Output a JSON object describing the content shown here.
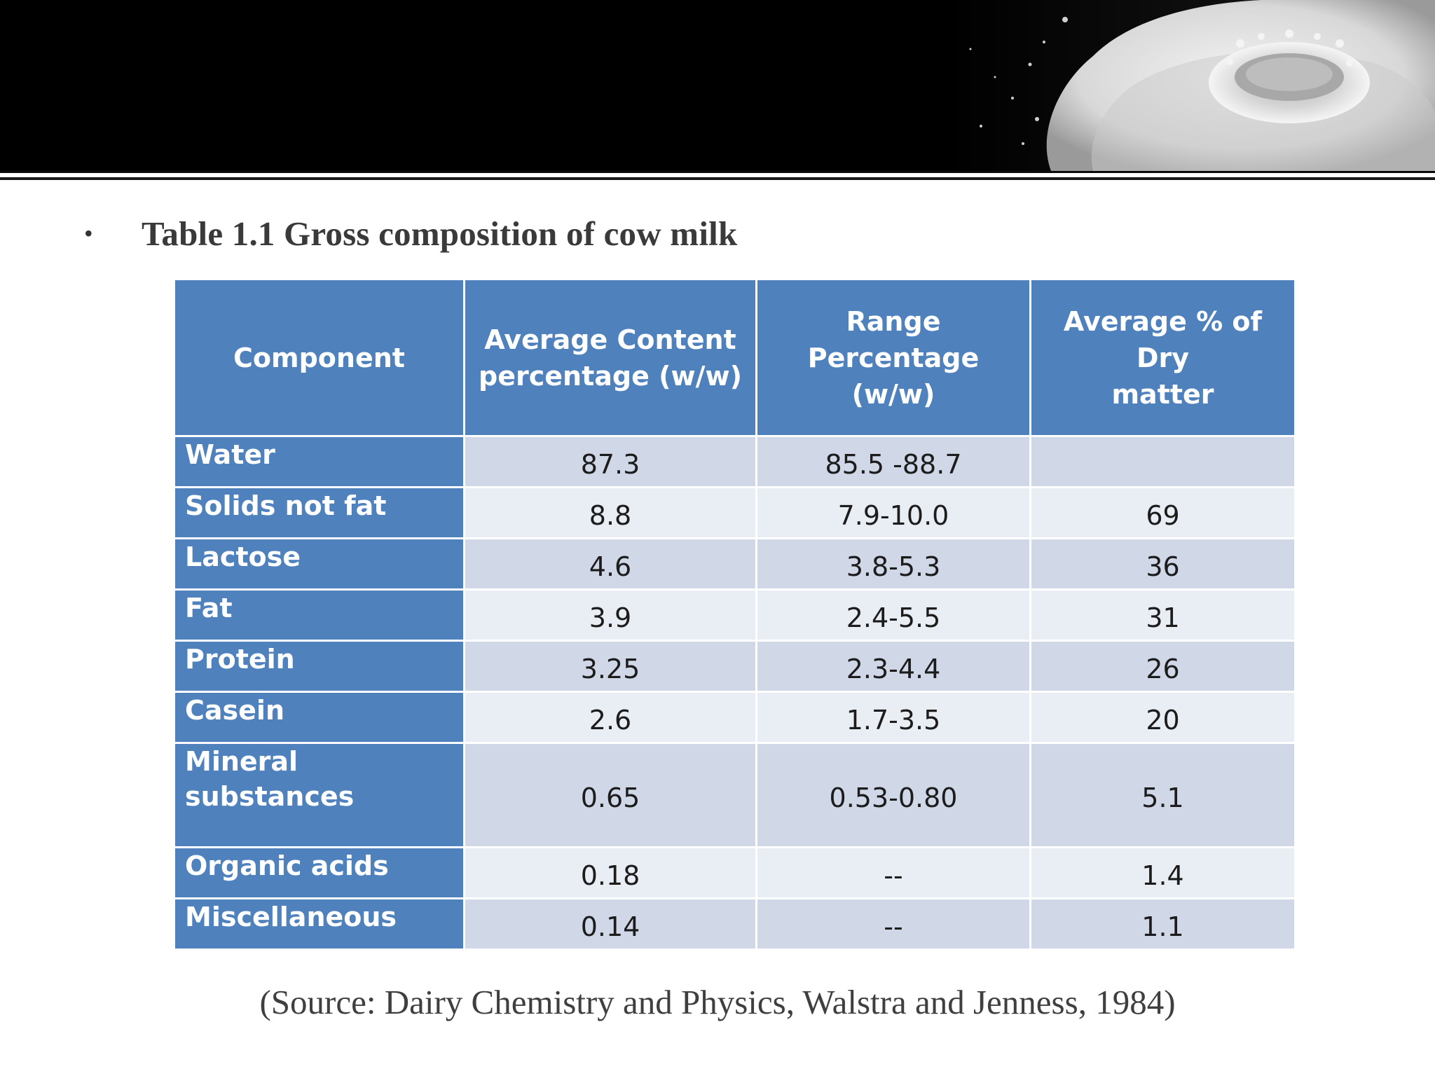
{
  "slide": {
    "bullet_char": "•",
    "title": "Table 1.1 Gross composition of cow milk",
    "source": "(Source: Dairy Chemistry and Physics, Walstra and Jenness, 1984)"
  },
  "table": {
    "headers": {
      "component": "Component",
      "avg_content_line1": "Average Content",
      "avg_content_line2": "percentage (w/w)",
      "range_line1": "Range Percentage",
      "range_line2": "(w/w)",
      "dry_line1": "Average % of Dry",
      "dry_line2": "matter"
    },
    "rows": [
      {
        "component": "Water",
        "average": "87.3",
        "range": "85.5 -88.7",
        "dry": ""
      },
      {
        "component": "Solids not fat",
        "average": "8.8",
        "range": "7.9-10.0",
        "dry": "69"
      },
      {
        "component": "Lactose",
        "average": "4.6",
        "range": "3.8-5.3",
        "dry": "36"
      },
      {
        "component": "Fat",
        "average": "3.9",
        "range": "2.4-5.5",
        "dry": "31"
      },
      {
        "component": "Protein",
        "average": "3.25",
        "range": "2.3-4.4",
        "dry": "26"
      },
      {
        "component": "Casein",
        "average": "2.6",
        "range": "1.7-3.5",
        "dry": "20"
      },
      {
        "component": "Mineral substances",
        "average": "0.65",
        "range": "0.53-0.80",
        "dry": "5.1"
      },
      {
        "component": "Organic acids",
        "average": "0.18",
        "range": "--",
        "dry": "1.4"
      },
      {
        "component": "Miscellaneous",
        "average": "0.14",
        "range": "--",
        "dry": "1.1"
      }
    ]
  },
  "colors": {
    "header_blue": "#4f81bd",
    "row_band_dark": "#d0d8e8",
    "row_band_light": "#e9edf4",
    "banner": "#000000"
  }
}
